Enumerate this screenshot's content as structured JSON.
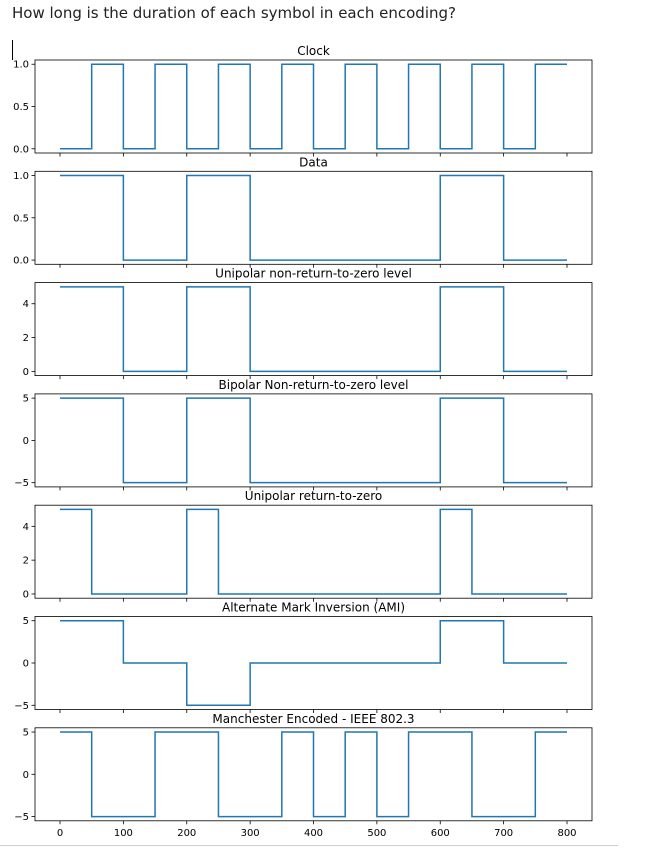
{
  "question": "How long is the duration of each symbol in each encoding?",
  "colors": {
    "line": "#1f77b4",
    "axes": "#000000"
  },
  "chart_data": [
    {
      "type": "line",
      "title": "Clock",
      "x": [
        0,
        50,
        50,
        100,
        100,
        150,
        150,
        200,
        200,
        250,
        250,
        300,
        300,
        350,
        350,
        400,
        400,
        450,
        450,
        500,
        500,
        550,
        550,
        600,
        600,
        650,
        650,
        700,
        700,
        750,
        750,
        800
      ],
      "y": [
        0,
        0,
        1,
        1,
        0,
        0,
        1,
        1,
        0,
        0,
        1,
        1,
        0,
        0,
        1,
        1,
        0,
        0,
        1,
        1,
        0,
        0,
        1,
        1,
        0,
        0,
        1,
        1,
        0,
        0,
        1,
        1
      ],
      "ylim": [
        -0.05,
        1.05
      ],
      "yticks": [
        0.0,
        0.5,
        1.0
      ],
      "ytick_labels": [
        "0.0",
        "0.5",
        "1.0"
      ]
    },
    {
      "type": "line",
      "title": "Data",
      "x": [
        0,
        100,
        100,
        200,
        200,
        300,
        300,
        600,
        600,
        700,
        700,
        800
      ],
      "y": [
        1,
        1,
        0,
        0,
        1,
        1,
        0,
        0,
        1,
        1,
        0,
        0
      ],
      "ylim": [
        -0.05,
        1.05
      ],
      "yticks": [
        0.0,
        0.5,
        1.0
      ],
      "ytick_labels": [
        "0.0",
        "0.5",
        "1.0"
      ]
    },
    {
      "type": "line",
      "title": "Unipolar non-return-to-zero level",
      "x": [
        0,
        100,
        100,
        200,
        200,
        300,
        300,
        600,
        600,
        700,
        700,
        800
      ],
      "y": [
        5,
        5,
        0,
        0,
        5,
        5,
        0,
        0,
        5,
        5,
        0,
        0
      ],
      "ylim": [
        -0.25,
        5.25
      ],
      "yticks": [
        0,
        2,
        4
      ],
      "ytick_labels": [
        "0",
        "2",
        "4"
      ]
    },
    {
      "type": "line",
      "title": "Bipolar Non-return-to-zero level",
      "x": [
        0,
        100,
        100,
        200,
        200,
        300,
        300,
        600,
        600,
        700,
        700,
        800
      ],
      "y": [
        5,
        5,
        -5,
        -5,
        5,
        5,
        -5,
        -5,
        5,
        5,
        -5,
        -5
      ],
      "ylim": [
        -5.5,
        5.5
      ],
      "yticks": [
        -5,
        0,
        5
      ],
      "ytick_labels": [
        "−5",
        "0",
        "5"
      ]
    },
    {
      "type": "line",
      "title": "Unipolar return-to-zero",
      "x": [
        0,
        50,
        50,
        200,
        200,
        250,
        250,
        600,
        600,
        650,
        650,
        800
      ],
      "y": [
        5,
        5,
        0,
        0,
        5,
        5,
        0,
        0,
        5,
        5,
        0,
        0
      ],
      "ylim": [
        -0.25,
        5.25
      ],
      "yticks": [
        0,
        2,
        4
      ],
      "ytick_labels": [
        "0",
        "2",
        "4"
      ]
    },
    {
      "type": "line",
      "title": "Alternate Mark Inversion (AMI)",
      "x": [
        0,
        100,
        100,
        200,
        200,
        300,
        300,
        600,
        600,
        700,
        700,
        800
      ],
      "y": [
        5,
        5,
        0,
        0,
        -5,
        -5,
        0,
        0,
        5,
        5,
        0,
        0
      ],
      "ylim": [
        -5.5,
        5.5
      ],
      "yticks": [
        -5,
        0,
        5
      ],
      "ytick_labels": [
        "−5",
        "0",
        "5"
      ]
    },
    {
      "type": "line",
      "title": "Manchester Encoded - IEEE 802.3",
      "x": [
        0,
        50,
        50,
        150,
        150,
        250,
        250,
        350,
        350,
        400,
        400,
        450,
        450,
        500,
        500,
        550,
        550,
        650,
        650,
        750,
        750,
        800
      ],
      "y": [
        5,
        5,
        -5,
        -5,
        5,
        5,
        -5,
        -5,
        5,
        5,
        -5,
        -5,
        5,
        5,
        -5,
        -5,
        5,
        5,
        -5,
        -5,
        5,
        5
      ],
      "ylim": [
        -5.5,
        5.5
      ],
      "yticks": [
        -5,
        0,
        5
      ],
      "ytick_labels": [
        "−5",
        "0",
        "5"
      ],
      "xticks": [
        0,
        100,
        200,
        300,
        400,
        500,
        600,
        700,
        800
      ],
      "xtick_labels": [
        "0",
        "100",
        "200",
        "300",
        "400",
        "500",
        "600",
        "700",
        "800"
      ]
    }
  ]
}
